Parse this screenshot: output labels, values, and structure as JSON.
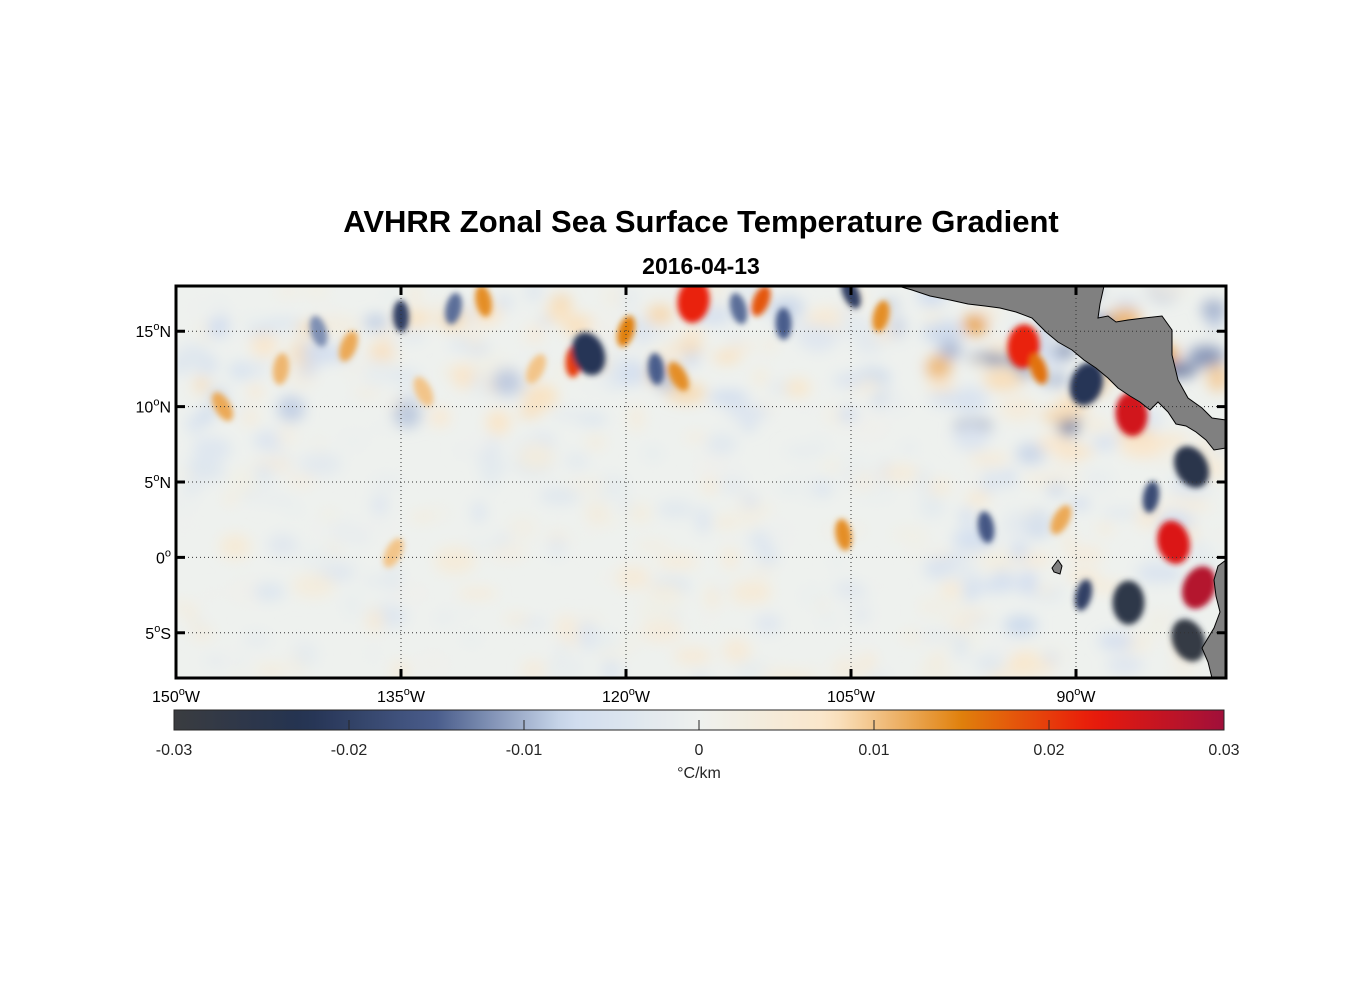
{
  "title": "AVHRR Zonal Sea Surface Temperature Gradient",
  "subtitle": "2016-04-13",
  "chart_data": {
    "type": "heatmap",
    "title": "AVHRR Zonal Sea Surface Temperature Gradient",
    "subtitle": "2016-04-13",
    "x_range_deg": [
      -150,
      -80
    ],
    "y_range_deg": [
      -8,
      18
    ],
    "x_ticks": [
      {
        "value": -150,
        "label": "150",
        "hemi": "W"
      },
      {
        "value": -135,
        "label": "135",
        "hemi": "W"
      },
      {
        "value": -120,
        "label": "120",
        "hemi": "W"
      },
      {
        "value": -105,
        "label": "105",
        "hemi": "W"
      },
      {
        "value": -90,
        "label": "90",
        "hemi": "W"
      }
    ],
    "y_ticks": [
      {
        "value": 15,
        "label": "15",
        "hemi": "N"
      },
      {
        "value": 10,
        "label": "10",
        "hemi": "N"
      },
      {
        "value": 5,
        "label": "5",
        "hemi": "N"
      },
      {
        "value": 0,
        "label": "0",
        "hemi": ""
      },
      {
        "value": -5,
        "label": "5",
        "hemi": "S"
      }
    ],
    "grid": "dotted",
    "land_color": "#808080",
    "colorbar": {
      "min": -0.03,
      "max": 0.03,
      "ticks": [
        "-0.03",
        "-0.02",
        "-0.01",
        "0",
        "0.01",
        "0.02",
        "0.03"
      ],
      "tick_values": [
        -0.03,
        -0.02,
        -0.01,
        0,
        0.01,
        0.02,
        0.03
      ],
      "label": "°C/km",
      "colors": [
        "#3a3c40",
        "#243352",
        "#4a5d8c",
        "#cfdcef",
        "#eef1ee",
        "#fbe6c8",
        "#e0800c",
        "#ea1a0a",
        "#a0103a"
      ]
    },
    "features": [
      {
        "lon": -146.9,
        "lat": 10.0,
        "value": 0.012
      },
      {
        "lon": -143.0,
        "lat": 12.5,
        "value": 0.011
      },
      {
        "lon": -140.5,
        "lat": 15.0,
        "value": -0.012
      },
      {
        "lon": -138.5,
        "lat": 14.0,
        "value": 0.012
      },
      {
        "lon": -135.0,
        "lat": 16.0,
        "value": -0.02
      },
      {
        "lon": -133.5,
        "lat": 11.0,
        "value": 0.01
      },
      {
        "lon": -131.5,
        "lat": 16.5,
        "value": -0.014
      },
      {
        "lon": -129.5,
        "lat": 17.0,
        "value": 0.014
      },
      {
        "lon": -126.0,
        "lat": 12.5,
        "value": 0.01
      },
      {
        "lon": -123.5,
        "lat": 13.0,
        "value": 0.02
      },
      {
        "lon": -122.5,
        "lat": 13.5,
        "value": -0.022
      },
      {
        "lon": -120.0,
        "lat": 15.0,
        "value": 0.015
      },
      {
        "lon": -118.0,
        "lat": 12.5,
        "value": -0.015
      },
      {
        "lon": -116.5,
        "lat": 12.0,
        "value": 0.014
      },
      {
        "lon": -115.5,
        "lat": 17.0,
        "value": 0.022
      },
      {
        "lon": -112.5,
        "lat": 16.5,
        "value": -0.014
      },
      {
        "lon": -111.0,
        "lat": 17.0,
        "value": 0.018
      },
      {
        "lon": -109.5,
        "lat": 15.5,
        "value": -0.015
      },
      {
        "lon": -105.0,
        "lat": 17.5,
        "value": -0.02
      },
      {
        "lon": -103.0,
        "lat": 16.0,
        "value": 0.014
      },
      {
        "lon": -105.5,
        "lat": 1.5,
        "value": 0.014
      },
      {
        "lon": -135.5,
        "lat": 0.3,
        "value": 0.01
      },
      {
        "lon": -93.5,
        "lat": 14.0,
        "value": 0.022
      },
      {
        "lon": -92.5,
        "lat": 12.5,
        "value": 0.016
      },
      {
        "lon": -89.3,
        "lat": 11.5,
        "value": -0.022
      },
      {
        "lon": -86.3,
        "lat": 9.5,
        "value": 0.025
      },
      {
        "lon": -82.3,
        "lat": 6.0,
        "value": -0.025
      },
      {
        "lon": -85.0,
        "lat": 4.0,
        "value": -0.018
      },
      {
        "lon": -83.5,
        "lat": 1.0,
        "value": 0.024
      },
      {
        "lon": -81.8,
        "lat": -2.0,
        "value": 0.028
      },
      {
        "lon": -86.5,
        "lat": -3.0,
        "value": -0.026
      },
      {
        "lon": -82.5,
        "lat": -5.5,
        "value": -0.028
      },
      {
        "lon": -89.5,
        "lat": -2.5,
        "value": -0.02
      },
      {
        "lon": -96.0,
        "lat": 2.0,
        "value": -0.016
      },
      {
        "lon": -91.0,
        "lat": 2.5,
        "value": 0.012
      }
    ]
  }
}
